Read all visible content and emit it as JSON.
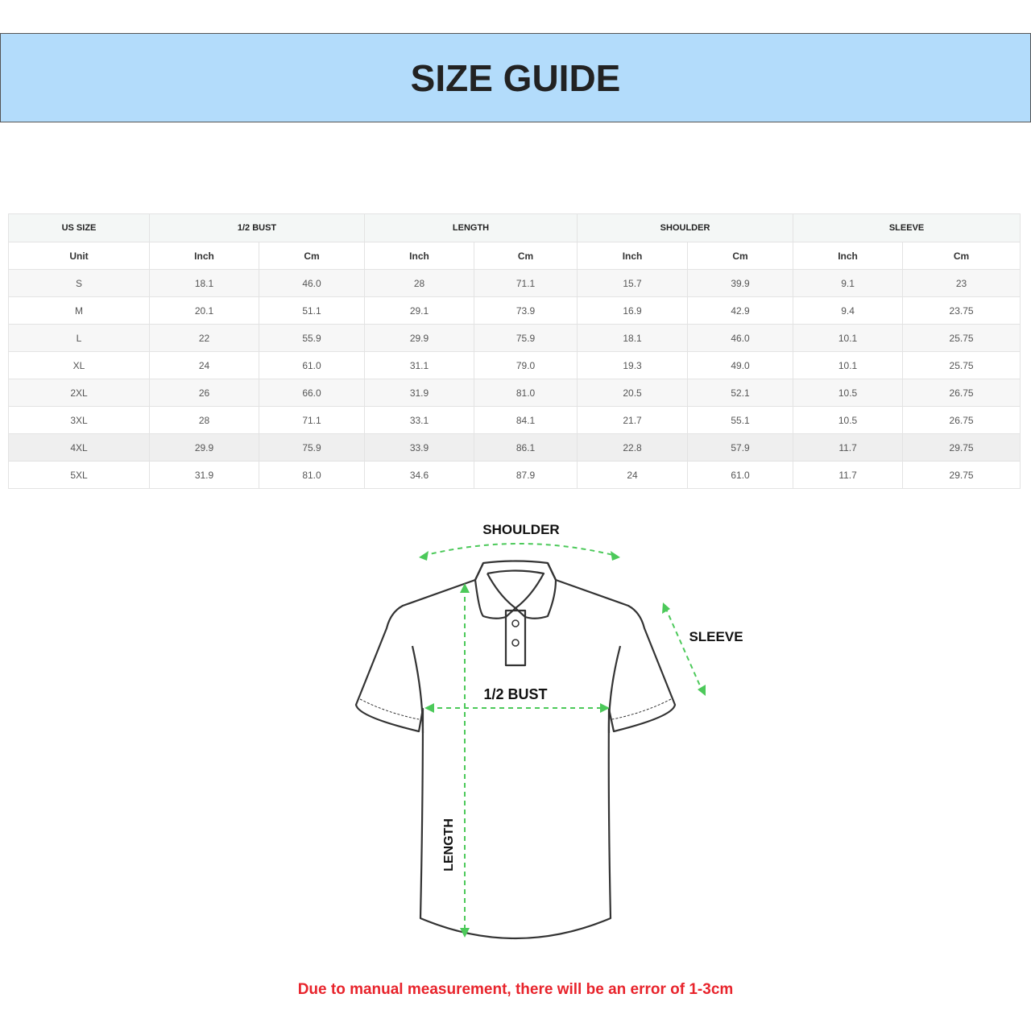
{
  "title": "SIZE GUIDE",
  "table": {
    "group_headers": [
      "US SIZE",
      "1/2 BUST",
      "LENGTH",
      "SHOULDER",
      "SLEEVE"
    ],
    "unit_row": [
      "Unit",
      "Inch",
      "Cm",
      "Inch",
      "Cm",
      "Inch",
      "Cm",
      "Inch",
      "Cm"
    ],
    "rows": [
      [
        "S",
        "18.1",
        "46.0",
        "28",
        "71.1",
        "15.7",
        "39.9",
        "9.1",
        "23"
      ],
      [
        "M",
        "20.1",
        "51.1",
        "29.1",
        "73.9",
        "16.9",
        "42.9",
        "9.4",
        "23.75"
      ],
      [
        "L",
        "22",
        "55.9",
        "29.9",
        "75.9",
        "18.1",
        "46.0",
        "10.1",
        "25.75"
      ],
      [
        "XL",
        "24",
        "61.0",
        "31.1",
        "79.0",
        "19.3",
        "49.0",
        "10.1",
        "25.75"
      ],
      [
        "2XL",
        "26",
        "66.0",
        "31.9",
        "81.0",
        "20.5",
        "52.1",
        "10.5",
        "26.75"
      ],
      [
        "3XL",
        "28",
        "71.1",
        "33.1",
        "84.1",
        "21.7",
        "55.1",
        "10.5",
        "26.75"
      ],
      [
        "4XL",
        "29.9",
        "75.9",
        "33.9",
        "86.1",
        "22.8",
        "57.9",
        "11.7",
        "29.75"
      ],
      [
        "5XL",
        "31.9",
        "81.0",
        "34.6",
        "87.9",
        "24",
        "61.0",
        "11.7",
        "29.75"
      ]
    ]
  },
  "diagram": {
    "shoulder": "SHOULDER",
    "sleeve": "SLEEVE",
    "bust": "1/2 BUST",
    "length": "LENGTH",
    "arrow_color": "#4cc95a"
  },
  "note": "Due to manual measurement, there will be an error of 1-3cm",
  "colors": {
    "banner": "#b3dcfb",
    "note": "#e8242c"
  }
}
